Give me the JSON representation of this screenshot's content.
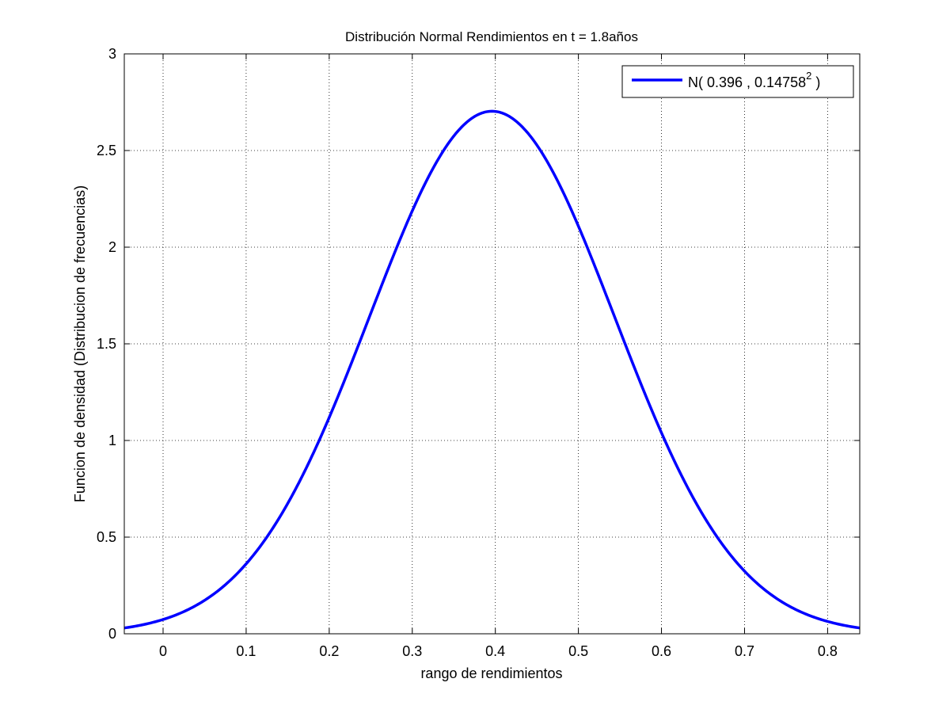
{
  "chart_data": {
    "type": "line",
    "title": "Distribución Normal Rendimientos en t = 1.8años",
    "xlabel": "rango de rendimientos",
    "ylabel": "Funcion de densidad (Distribucion de frecuencias)",
    "xlim": [
      -0.0467,
      0.8387
    ],
    "ylim": [
      0,
      3
    ],
    "xticks": [
      0,
      0.1,
      0.2,
      0.3,
      0.4,
      0.5,
      0.6,
      0.7,
      0.8
    ],
    "xtick_labels": [
      "0",
      "0.1",
      "0.2",
      "0.3",
      "0.4",
      "0.5",
      "0.6",
      "0.7",
      "0.8"
    ],
    "yticks": [
      0,
      0.5,
      1,
      1.5,
      2,
      2.5,
      3
    ],
    "ytick_labels": [
      "0",
      "0.5",
      "1",
      "1.5",
      "2",
      "2.5",
      "3"
    ],
    "grid": true,
    "legend_position": "top-right",
    "series": [
      {
        "name": "N( 0.396 , 0.14758",
        "name_superscript": "2",
        "name_suffix": " )",
        "color": "#0000ff",
        "distribution": "normal",
        "mean": 0.396,
        "std": 0.14758
      }
    ]
  }
}
